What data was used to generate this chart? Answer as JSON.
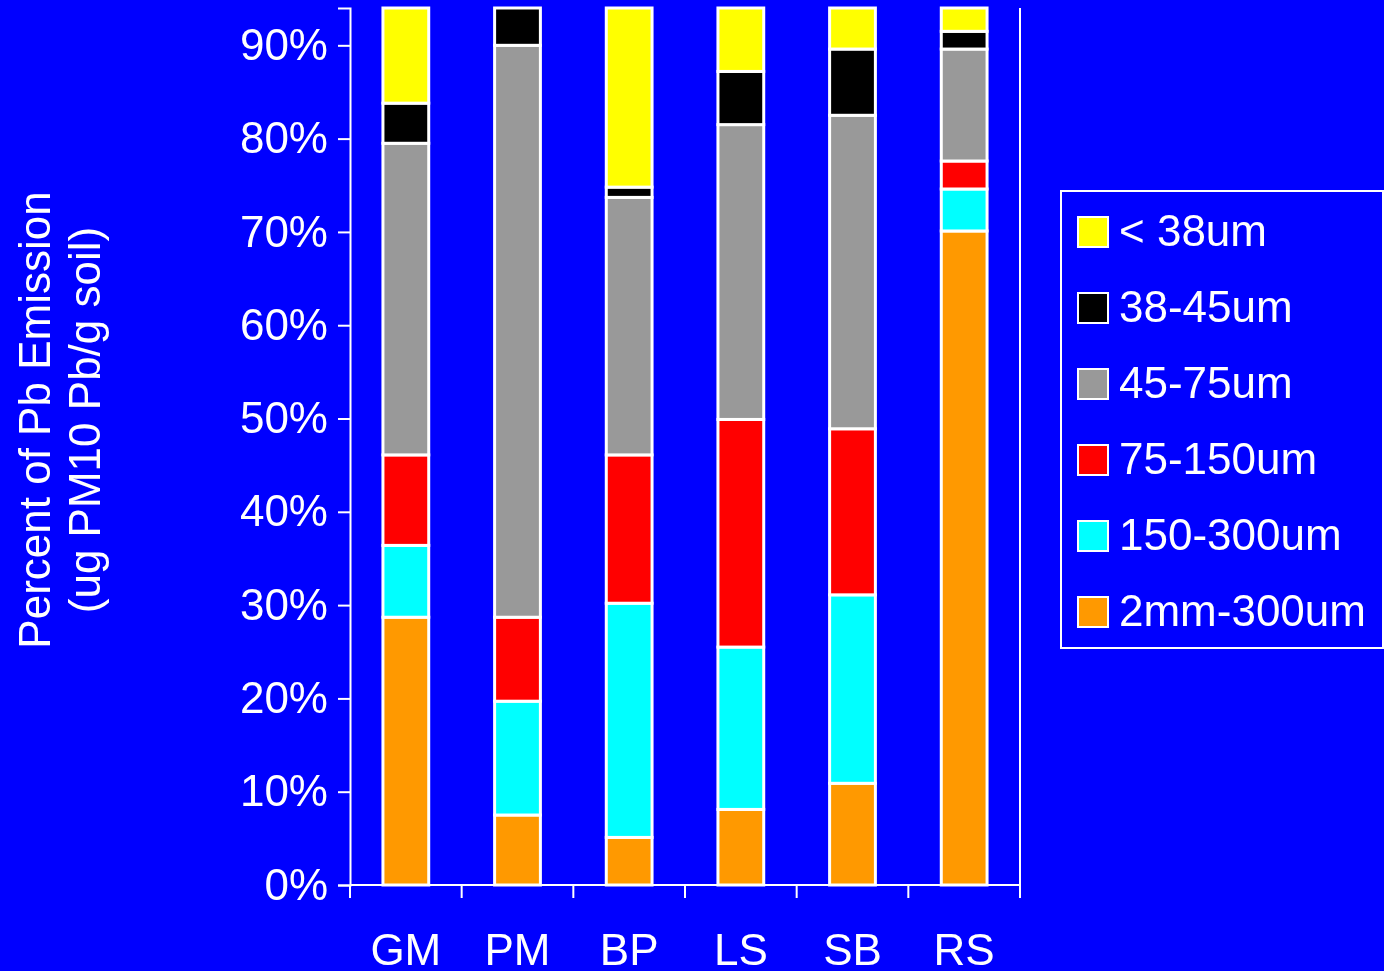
{
  "chart_data": {
    "type": "bar",
    "stacked": true,
    "ylabel": "Percent of Pb Emission\n(ug PM10 Pb/g soil)",
    "categories": [
      "GM",
      "PM",
      "BP",
      "LS",
      "SB",
      "RS"
    ],
    "series": [
      {
        "name": "2mm-300um",
        "color": "#ff9900",
        "values": [
          28.7,
          7.5,
          5.1,
          8.1,
          10.9,
          70.1
        ]
      },
      {
        "name": "150-300um",
        "color": "#00ffff",
        "values": [
          7.7,
          12.2,
          25.1,
          17.4,
          20.2,
          4.5
        ]
      },
      {
        "name": "75-150um",
        "color": "#ff0000",
        "values": [
          9.7,
          9.0,
          15.9,
          24.4,
          17.8,
          3.0
        ]
      },
      {
        "name": "45-75um",
        "color": "#999999",
        "values": [
          33.4,
          61.3,
          27.6,
          31.6,
          33.6,
          12.0
        ]
      },
      {
        "name": "38-45um",
        "color": "#000000",
        "values": [
          4.3,
          4.0,
          1.1,
          5.7,
          7.1,
          1.9
        ]
      },
      {
        "name": "< 38um",
        "color": "#ffff00",
        "values": [
          10.2,
          0,
          19.2,
          6.8,
          4.4,
          2.5
        ]
      }
    ],
    "ylim": [
      0,
      94
    ],
    "yticks": [
      {
        "value": 0,
        "label": "0%"
      },
      {
        "value": 10,
        "label": "10%"
      },
      {
        "value": 20,
        "label": "20%"
      },
      {
        "value": 30,
        "label": "30%"
      },
      {
        "value": 40,
        "label": "40%"
      },
      {
        "value": 50,
        "label": "50%"
      },
      {
        "value": 60,
        "label": "60%"
      },
      {
        "value": 70,
        "label": "70%"
      },
      {
        "value": 80,
        "label": "80%"
      },
      {
        "value": 90,
        "label": "90%"
      }
    ],
    "grid": false,
    "legend": "right"
  }
}
